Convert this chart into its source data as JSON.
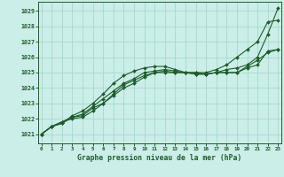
{
  "xlabel": "Graphe pression niveau de la mer (hPa)",
  "bg_color": "#cbeee8",
  "grid_color": "#a8d8cc",
  "line_color": "#1e5c2a",
  "marker_color": "#1e5c2a",
  "xlim": [
    -0.3,
    23.3
  ],
  "ylim": [
    1020.4,
    1029.6
  ],
  "yticks": [
    1021,
    1022,
    1023,
    1024,
    1025,
    1026,
    1027,
    1028,
    1029
  ],
  "xticks": [
    0,
    1,
    2,
    3,
    4,
    5,
    6,
    7,
    8,
    9,
    10,
    11,
    12,
    13,
    14,
    15,
    16,
    17,
    18,
    19,
    20,
    21,
    22,
    23
  ],
  "series": [
    [
      1021.0,
      1021.5,
      1021.7,
      1022.1,
      1022.2,
      1022.7,
      1023.0,
      1023.5,
      1024.0,
      1024.3,
      1024.7,
      1025.0,
      1025.0,
      1025.0,
      1025.0,
      1024.9,
      1024.9,
      1025.0,
      1025.2,
      1025.3,
      1025.5,
      1026.0,
      1027.5,
      1029.2
    ],
    [
      1021.0,
      1021.5,
      1021.8,
      1022.0,
      1022.1,
      1022.5,
      1023.0,
      1023.6,
      1024.2,
      1024.5,
      1024.8,
      1025.0,
      1025.1,
      1025.0,
      1025.0,
      1024.9,
      1024.9,
      1025.0,
      1025.0,
      1025.0,
      1025.3,
      1025.5,
      1026.4,
      1026.5
    ],
    [
      1021.0,
      1021.5,
      1021.8,
      1022.1,
      1022.3,
      1022.8,
      1023.3,
      1023.8,
      1024.3,
      1024.6,
      1025.0,
      1025.1,
      1025.2,
      1025.1,
      1025.0,
      1025.0,
      1024.9,
      1025.0,
      1025.0,
      1025.0,
      1025.4,
      1025.8,
      1026.3,
      1026.5
    ],
    [
      1021.0,
      1021.5,
      1021.7,
      1022.2,
      1022.5,
      1023.0,
      1023.6,
      1024.3,
      1024.8,
      1025.1,
      1025.3,
      1025.4,
      1025.4,
      1025.2,
      1025.0,
      1025.0,
      1025.0,
      1025.2,
      1025.5,
      1026.0,
      1026.5,
      1027.0,
      1028.3,
      1028.4
    ]
  ]
}
